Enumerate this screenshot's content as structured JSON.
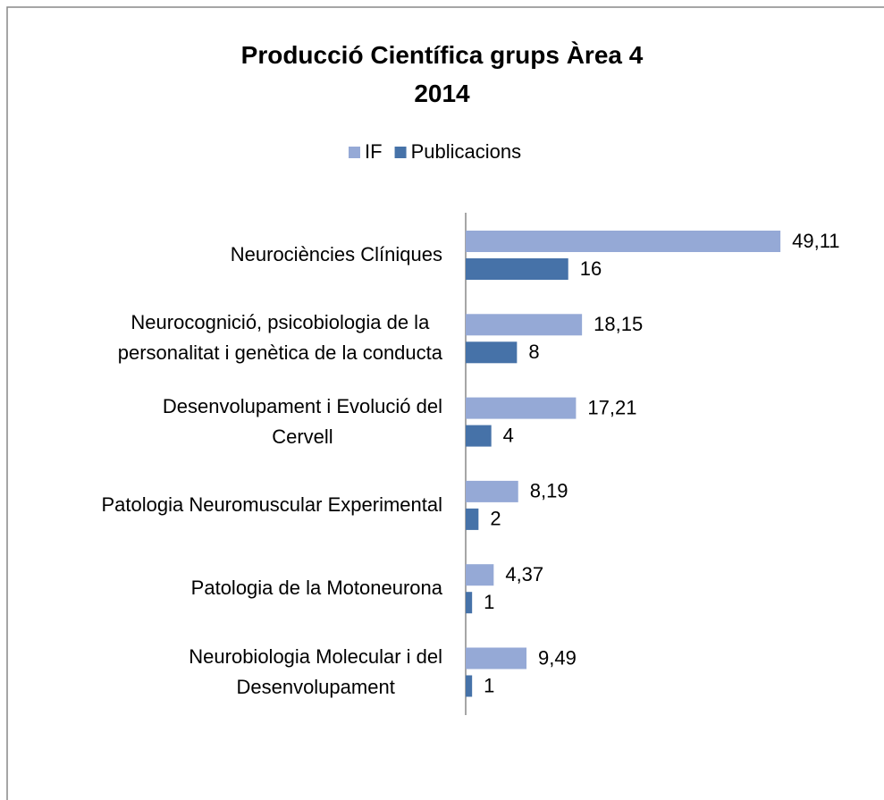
{
  "chart_data": {
    "type": "bar",
    "orientation": "horizontal",
    "title": "Producció Científica grups Àrea 4\n2014",
    "categories": [
      "Neurociències Clíniques",
      "Neurocognició, psicobiologia de la\npersonalitat i genètica de la conducta",
      "Desenvolupament i Evolució del\nCervell",
      "Patologia Neuromuscular Experimental",
      "Patologia de la Motoneurona",
      "Neurobiologia Molecular i del\nDesenvolupament"
    ],
    "series": [
      {
        "name": "IF",
        "color": "#95a9d6",
        "values": [
          49.11,
          18.15,
          17.21,
          8.19,
          4.37,
          9.49
        ],
        "value_labels": [
          "49,11",
          "18,15",
          "17,21",
          "8,19",
          "4,37",
          "9,49"
        ]
      },
      {
        "name": "Publicacions",
        "color": "#4672a8",
        "values": [
          16,
          8,
          4,
          2,
          1,
          1
        ]
      }
    ],
    "legend": "top"
  }
}
